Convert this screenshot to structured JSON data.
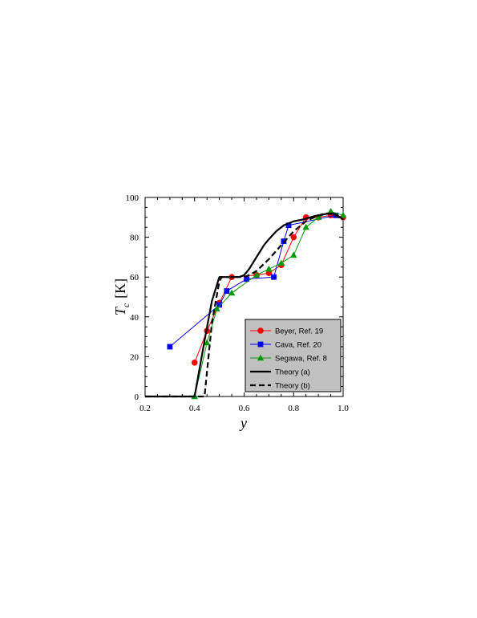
{
  "chart_data": {
    "type": "line",
    "xlabel": "y",
    "ylabel": {
      "symbol": "T",
      "subscript": "c",
      "unit": "[K]"
    },
    "xlim": [
      0.2,
      1.0
    ],
    "ylim": [
      0,
      100
    ],
    "xticks": [
      "0.2",
      "0.4",
      "0.6",
      "0.8",
      "1.0"
    ],
    "yticks": [
      "0",
      "20",
      "40",
      "60",
      "80",
      "100"
    ],
    "legend_position": "bottom-right",
    "series": [
      {
        "name": "Beyer, Ref. 19",
        "color": "#ff0000",
        "marker": "circle",
        "x": [
          0.4,
          0.45,
          0.5,
          0.55,
          0.65,
          0.7,
          0.75,
          0.8,
          0.85,
          0.9,
          0.95,
          1.0
        ],
        "y": [
          17,
          33,
          47,
          60,
          61,
          62,
          66,
          80,
          90,
          90,
          91,
          90
        ]
      },
      {
        "name": "Cava, Ref. 20",
        "color": "#0000ff",
        "marker": "square",
        "x": [
          0.3,
          0.5,
          0.53,
          0.61,
          0.72,
          0.76,
          0.78,
          0.97
        ],
        "y": [
          25,
          46,
          53,
          59,
          60,
          78,
          86,
          91
        ]
      },
      {
        "name": "Segawa, Ref. 8",
        "color": "#009900",
        "marker": "triangle",
        "x": [
          0.4,
          0.45,
          0.49,
          0.55,
          0.65,
          0.7,
          0.75,
          0.8,
          0.85,
          0.9,
          0.95,
          1.0
        ],
        "y": [
          0,
          27,
          44,
          52,
          61,
          64,
          67,
          71,
          85,
          90,
          93,
          91
        ]
      },
      {
        "name": "Theory (a)",
        "color": "#000000",
        "style": "solid",
        "x": [
          0.2,
          0.4,
          0.41,
          0.44,
          0.47,
          0.5,
          0.52,
          0.55,
          0.58,
          0.6,
          0.62,
          0.64,
          0.66,
          0.68,
          0.7,
          0.73,
          0.76,
          0.8,
          0.84,
          0.88,
          0.92,
          0.95,
          0.97,
          1.0
        ],
        "y": [
          0,
          0,
          7,
          28,
          48,
          60,
          60,
          60,
          60,
          61,
          64,
          68,
          72,
          76,
          79,
          83,
          86,
          88,
          89,
          90.5,
          91.5,
          92,
          91.5,
          89
        ]
      },
      {
        "name": "Theory (b)",
        "color": "#000000",
        "style": "dashed",
        "x": [
          0.2,
          0.42,
          0.44,
          0.47,
          0.5,
          0.51,
          0.55,
          0.6,
          0.62,
          0.65,
          0.7,
          0.75,
          0.8,
          0.85,
          0.9,
          0.93,
          0.96,
          1.0
        ],
        "y": [
          0,
          0,
          0,
          37,
          58,
          60,
          60,
          60,
          61,
          63,
          69,
          76,
          83,
          88,
          91,
          92,
          91.5,
          89
        ]
      }
    ]
  }
}
